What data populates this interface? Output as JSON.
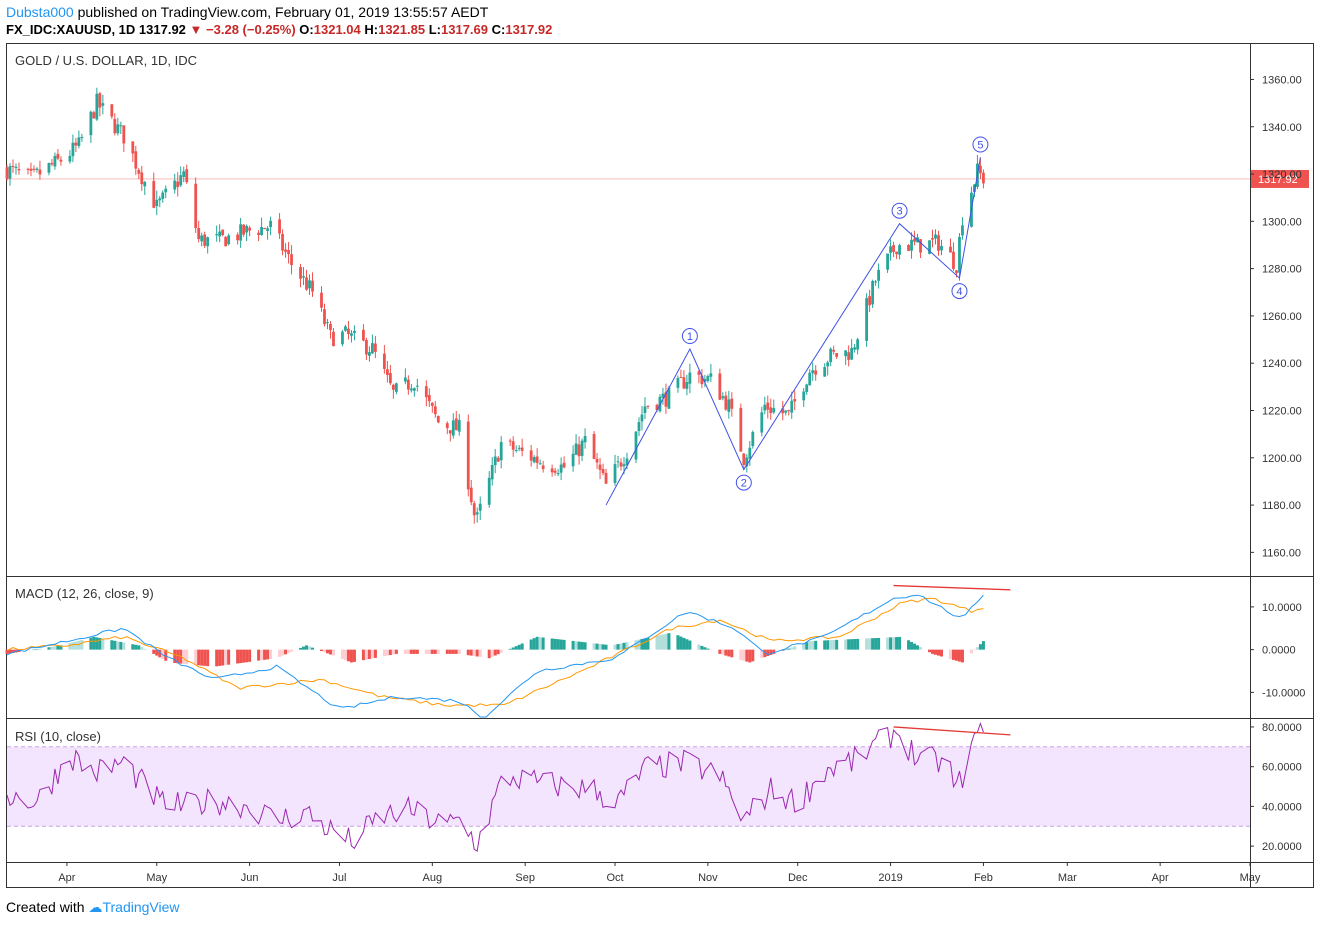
{
  "header": {
    "user": "Dubsta000",
    "published": "published on TradingView.com, February 01, 2019 13:55:57 AEDT",
    "symbol": "FX_IDC:XAUUSD, 1D",
    "last": "1317.92",
    "change": "−3.28 (−0.25%)",
    "o_label": "O:",
    "o": "1321.04",
    "h_label": "H:",
    "h": "1321.85",
    "l_label": "L:",
    "l": "1317.69",
    "c_label": "C:",
    "c": "1317.92"
  },
  "footer": {
    "created_with": "Created with",
    "brand": "TradingView"
  },
  "colors": {
    "up": "#26a69a",
    "down": "#ef5350",
    "wave": "#3f51e5",
    "macd": "#2196f3",
    "signal": "#ff9800",
    "rsi": "#9c27b0",
    "rsi_band": "#f3e5fd",
    "divergence": "#e53935",
    "last_price_bg": "#ef5350"
  },
  "chart_data": [
    {
      "type": "candlestick",
      "title": "GOLD / U.S. DOLLAR, 1D, IDC",
      "ylim": [
        1150,
        1375
      ],
      "y_ticks": [
        "1360.00",
        "1340.00",
        "1320.00",
        "1300.00",
        "1280.00",
        "1260.00",
        "1240.00",
        "1220.00",
        "1200.00",
        "1180.00",
        "1160.00"
      ],
      "last_price_label": "1317.92",
      "last_price": 1317.92,
      "x_ticks": [
        "Apr",
        "May",
        "Jun",
        "Jul",
        "Aug",
        "Sep",
        "Oct",
        "Nov",
        "Dec",
        "2019",
        "Feb",
        "Mar",
        "Apr",
        "May"
      ],
      "x_range_days": [
        "2018-03-12",
        "2019-05-01"
      ],
      "price_path": [
        [
          "2018-03-12",
          1322
        ],
        [
          "2018-03-20",
          1318
        ],
        [
          "2018-03-30",
          1326
        ],
        [
          "2018-04-05",
          1332
        ],
        [
          "2018-04-11",
          1350
        ],
        [
          "2018-04-20",
          1336
        ],
        [
          "2018-04-25",
          1322
        ],
        [
          "2018-05-01",
          1306
        ],
        [
          "2018-05-10",
          1320
        ],
        [
          "2018-05-15",
          1292
        ],
        [
          "2018-05-22",
          1292
        ],
        [
          "2018-06-01",
          1296
        ],
        [
          "2018-06-08",
          1298
        ],
        [
          "2018-06-15",
          1282
        ],
        [
          "2018-06-22",
          1270
        ],
        [
          "2018-06-28",
          1251
        ],
        [
          "2018-07-03",
          1252
        ],
        [
          "2018-07-12",
          1246
        ],
        [
          "2018-07-19",
          1227
        ],
        [
          "2018-07-26",
          1233
        ],
        [
          "2018-08-03",
          1215
        ],
        [
          "2018-08-10",
          1212
        ],
        [
          "2018-08-15",
          1176
        ],
        [
          "2018-08-16",
          1174
        ],
        [
          "2018-08-24",
          1206
        ],
        [
          "2018-08-31",
          1202
        ],
        [
          "2018-09-07",
          1198
        ],
        [
          "2018-09-14",
          1196
        ],
        [
          "2018-09-21",
          1207
        ],
        [
          "2018-09-28",
          1188
        ],
        [
          "2018-10-05",
          1203
        ],
        [
          "2018-10-11",
          1222
        ],
        [
          "2018-10-19",
          1226
        ],
        [
          "2018-10-26",
          1235
        ],
        [
          "2018-11-02",
          1233
        ],
        [
          "2018-11-08",
          1222
        ],
        [
          "2018-11-13",
          1200
        ],
        [
          "2018-11-20",
          1222
        ],
        [
          "2018-11-28",
          1218
        ],
        [
          "2018-12-05",
          1237
        ],
        [
          "2018-12-12",
          1243
        ],
        [
          "2018-12-19",
          1245
        ],
        [
          "2018-12-27",
          1275
        ],
        [
          "2019-01-03",
          1290
        ],
        [
          "2019-01-10",
          1290
        ],
        [
          "2019-01-17",
          1291
        ],
        [
          "2019-01-23",
          1282
        ],
        [
          "2019-01-25",
          1302
        ],
        [
          "2019-01-30",
          1321
        ],
        [
          "2019-02-01",
          1318
        ]
      ]
    },
    {
      "type": "line",
      "title": "MACD (12, 26, close, 9)",
      "ylim": [
        -16,
        17
      ],
      "y_ticks": [
        "10.0000",
        "0.0000",
        "-10.0000"
      ],
      "series": [
        {
          "name": "MACD",
          "points": [
            [
              "2018-03-12",
              -1
            ],
            [
              "2018-04-01",
              2
            ],
            [
              "2018-04-20",
              5
            ],
            [
              "2018-05-05",
              -2
            ],
            [
              "2018-05-20",
              -7
            ],
            [
              "2018-06-10",
              -4
            ],
            [
              "2018-07-01",
              -14
            ],
            [
              "2018-07-20",
              -11
            ],
            [
              "2018-08-10",
              -12
            ],
            [
              "2018-08-18",
              -16
            ],
            [
              "2018-09-05",
              -5
            ],
            [
              "2018-10-01",
              -2
            ],
            [
              "2018-10-25",
              9
            ],
            [
              "2018-11-10",
              5
            ],
            [
              "2018-11-20",
              -1
            ],
            [
              "2018-12-10",
              3
            ],
            [
              "2019-01-02",
              12
            ],
            [
              "2019-01-10",
              13
            ],
            [
              "2019-01-25",
              7
            ],
            [
              "2019-02-01",
              13
            ]
          ]
        },
        {
          "name": "Signal",
          "points": [
            [
              "2018-03-12",
              0
            ],
            [
              "2018-04-01",
              1
            ],
            [
              "2018-04-20",
              3
            ],
            [
              "2018-05-10",
              -2
            ],
            [
              "2018-05-28",
              -9
            ],
            [
              "2018-06-25",
              -7
            ],
            [
              "2018-07-15",
              -11
            ],
            [
              "2018-08-05",
              -13
            ],
            [
              "2018-08-25",
              -13
            ],
            [
              "2018-09-20",
              -5
            ],
            [
              "2018-10-20",
              5
            ],
            [
              "2018-11-05",
              7
            ],
            [
              "2018-11-22",
              2
            ],
            [
              "2018-12-15",
              3
            ],
            [
              "2019-01-05",
              11
            ],
            [
              "2019-01-15",
              12
            ],
            [
              "2019-01-28",
              9
            ],
            [
              "2019-02-01",
              10
            ]
          ]
        }
      ],
      "histogram_path": [
        [
          "2018-03-12",
          -1
        ],
        [
          "2018-03-30",
          1
        ],
        [
          "2018-04-10",
          3
        ],
        [
          "2018-04-25",
          1
        ],
        [
          "2018-05-05",
          -3
        ],
        [
          "2018-05-20",
          -4
        ],
        [
          "2018-06-10",
          -2
        ],
        [
          "2018-06-20",
          1
        ],
        [
          "2018-07-05",
          -3
        ],
        [
          "2018-07-20",
          -1
        ],
        [
          "2018-08-10",
          -1
        ],
        [
          "2018-08-20",
          -2
        ],
        [
          "2018-09-05",
          3
        ],
        [
          "2018-09-30",
          1
        ],
        [
          "2018-10-20",
          4
        ],
        [
          "2018-11-05",
          -1
        ],
        [
          "2018-11-15",
          -3
        ],
        [
          "2018-12-05",
          2
        ],
        [
          "2019-01-05",
          3
        ],
        [
          "2019-01-15",
          -1
        ],
        [
          "2019-01-25",
          -3
        ],
        [
          "2019-02-01",
          2
        ]
      ],
      "divergence": [
        [
          "2019-01-02",
          15
        ],
        [
          "2019-02-10",
          14
        ]
      ]
    },
    {
      "type": "line",
      "title": "RSI (10, close)",
      "ylim": [
        12,
        84
      ],
      "y_ticks": [
        "80.0000",
        "60.0000",
        "40.0000",
        "20.0000"
      ],
      "band": [
        30,
        70
      ],
      "series": [
        {
          "name": "RSI",
          "points": [
            [
              "2018-03-12",
              46
            ],
            [
              "2018-03-22",
              42
            ],
            [
              "2018-04-02",
              66
            ],
            [
              "2018-04-10",
              57
            ],
            [
              "2018-04-20",
              62
            ],
            [
              "2018-05-02",
              42
            ],
            [
              "2018-05-10",
              40
            ],
            [
              "2018-05-20",
              43
            ],
            [
              "2018-06-01",
              40
            ],
            [
              "2018-06-10",
              33
            ],
            [
              "2018-06-20",
              37
            ],
            [
              "2018-06-28",
              28
            ],
            [
              "2018-07-05",
              22
            ],
            [
              "2018-07-15",
              35
            ],
            [
              "2018-07-25",
              38
            ],
            [
              "2018-08-05",
              30
            ],
            [
              "2018-08-10",
              33
            ],
            [
              "2018-08-16",
              21
            ],
            [
              "2018-08-25",
              55
            ],
            [
              "2018-09-05",
              52
            ],
            [
              "2018-09-15",
              50
            ],
            [
              "2018-09-25",
              48
            ],
            [
              "2018-10-01",
              40
            ],
            [
              "2018-10-11",
              59
            ],
            [
              "2018-10-25",
              62
            ],
            [
              "2018-11-05",
              55
            ],
            [
              "2018-11-13",
              33
            ],
            [
              "2018-11-22",
              48
            ],
            [
              "2018-12-01",
              42
            ],
            [
              "2018-12-10",
              58
            ],
            [
              "2018-12-20",
              63
            ],
            [
              "2019-01-03",
              78
            ],
            [
              "2019-01-10",
              64
            ],
            [
              "2019-01-20",
              62
            ],
            [
              "2019-01-23",
              48
            ],
            [
              "2019-01-28",
              68
            ],
            [
              "2019-01-30",
              78
            ],
            [
              "2019-02-01",
              73
            ]
          ]
        }
      ],
      "divergence": [
        [
          "2019-01-02",
          80
        ],
        [
          "2019-02-10",
          76
        ]
      ]
    }
  ],
  "waves": [
    {
      "label": "1",
      "date": "2018-10-26",
      "price": 1246,
      "label_pos": "above"
    },
    {
      "label": "2",
      "date": "2018-11-13",
      "price": 1195,
      "label_pos": "below"
    },
    {
      "label": "3",
      "date": "2019-01-04",
      "price": 1299,
      "label_pos": "above"
    },
    {
      "label": "4",
      "date": "2019-01-24",
      "price": 1276,
      "label_pos": "below"
    },
    {
      "label": "5",
      "date": "2019-01-31",
      "price": 1327,
      "label_pos": "above"
    }
  ],
  "wave_start": {
    "date": "2018-09-28",
    "price": 1180
  }
}
